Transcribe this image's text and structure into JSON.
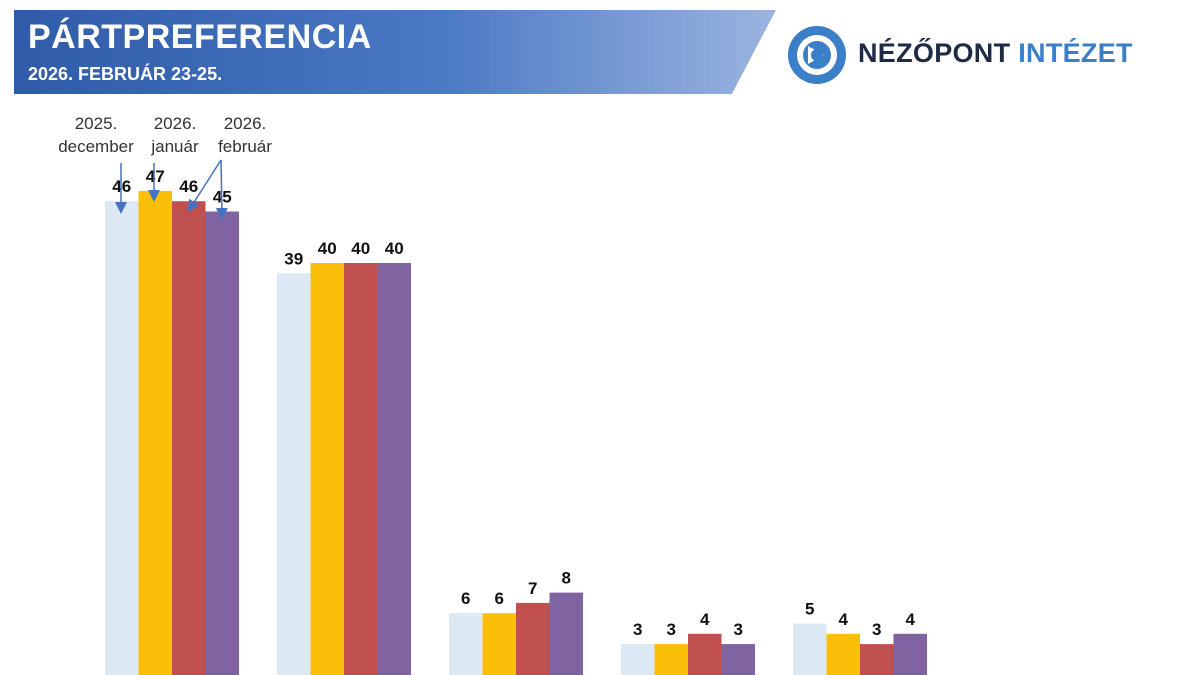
{
  "header": {
    "title": "PÁRTPREFERENCIA",
    "subtitle": "2026. FEBRUÁR 23-25.",
    "logo_word1": "NÉZŐPONT",
    "logo_word2": "INTÉZET"
  },
  "colors": {
    "banner": "#3a66b4",
    "logo_blue": "#3a7fc8",
    "logo_dark": "#1f2a44"
  },
  "chart_data": {
    "type": "bar",
    "title": "",
    "xlabel": "",
    "ylabel": "",
    "ylim": [
      0,
      50
    ],
    "grid": false,
    "legend": "top-left annotations with arrows",
    "categories": [
      "",
      "",
      "",
      "",
      ""
    ],
    "series": [
      {
        "name": "2025. december",
        "color": "#dce8f4",
        "values": [
          46,
          39,
          6,
          3,
          5
        ]
      },
      {
        "name": "2026. január",
        "color": "#fbbf0a",
        "values": [
          47,
          40,
          6,
          3,
          4
        ]
      },
      {
        "name": "2026. február",
        "color": "#c0504d",
        "values": [
          46,
          40,
          7,
          4,
          3
        ]
      },
      {
        "name": "2026. február",
        "color": "#8064a2",
        "values": [
          45,
          40,
          8,
          3,
          4
        ]
      }
    ],
    "legend_labels": [
      {
        "line1": "2025.",
        "line2": "december"
      },
      {
        "line1": "2026.",
        "line2": "január"
      },
      {
        "line1": "2026.",
        "line2": "február"
      }
    ]
  }
}
